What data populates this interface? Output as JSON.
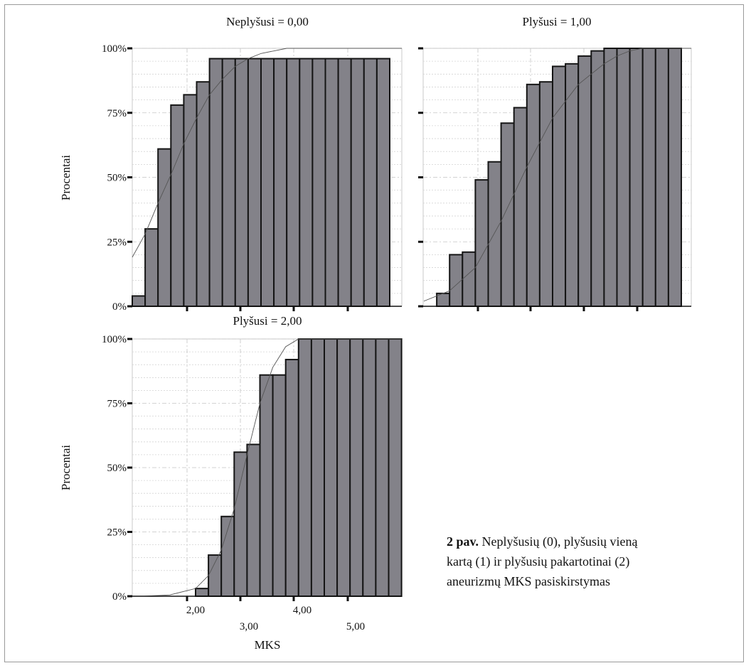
{
  "chart_data": [
    {
      "type": "bar",
      "panel_title": "Neplyšusi = 0,00",
      "ylabel": "Procentai",
      "xlabel": "",
      "ylim": [
        0,
        100
      ],
      "yticks": [
        "0%",
        "25%",
        "50%",
        "75%",
        "100%"
      ],
      "xticks": [],
      "grid": true,
      "values": [
        4,
        30,
        61,
        78,
        82,
        87,
        96,
        96,
        96,
        96,
        96,
        96,
        96,
        96,
        96,
        96,
        96,
        96,
        96,
        96,
        96,
        100
      ],
      "curve": [
        [
          0,
          19
        ],
        [
          1,
          28
        ],
        [
          2,
          40
        ],
        [
          3,
          51
        ],
        [
          4,
          63
        ],
        [
          5,
          73
        ],
        [
          6,
          82
        ],
        [
          7,
          88
        ],
        [
          8,
          93
        ],
        [
          9,
          96
        ],
        [
          10,
          98
        ],
        [
          11,
          99
        ],
        [
          12,
          100
        ],
        [
          22,
          100
        ]
      ]
    },
    {
      "type": "bar",
      "panel_title": "Plyšusi = 1,00",
      "ylabel": "",
      "xlabel": "",
      "ylim": [
        0,
        100
      ],
      "yticks": [],
      "xticks": [],
      "grid": true,
      "values": [
        0,
        5,
        20,
        21,
        49,
        56,
        71,
        77,
        86,
        87,
        93,
        94,
        97,
        99,
        100,
        100,
        100,
        100,
        100,
        100,
        100,
        100,
        100
      ],
      "curve": [
        [
          0,
          2
        ],
        [
          2,
          6
        ],
        [
          4,
          15
        ],
        [
          6,
          33
        ],
        [
          8,
          54
        ],
        [
          10,
          73
        ],
        [
          12,
          86
        ],
        [
          14,
          94
        ],
        [
          15,
          97
        ],
        [
          16,
          99
        ],
        [
          17,
          100
        ],
        [
          23,
          100
        ]
      ]
    },
    {
      "type": "bar",
      "panel_title": "Plyšusi = 2,00",
      "ylabel": "Procentai",
      "xlabel": "MKS",
      "ylim": [
        0,
        100
      ],
      "yticks": [
        "0%",
        "25%",
        "50%",
        "75%",
        "100%"
      ],
      "xticks": [
        "2,00",
        "3,00",
        "4,00",
        "5,00"
      ],
      "grid": true,
      "values": [
        3,
        16,
        31,
        56,
        59,
        86,
        86,
        92,
        100,
        100,
        100,
        100,
        100,
        100,
        100,
        100
      ],
      "curve": [
        [
          -4,
          0
        ],
        [
          -2,
          0.5
        ],
        [
          0,
          3
        ],
        [
          1,
          8
        ],
        [
          2,
          18
        ],
        [
          3,
          34
        ],
        [
          4,
          55
        ],
        [
          5,
          75
        ],
        [
          6,
          89
        ],
        [
          7,
          97
        ],
        [
          8,
          100
        ],
        [
          16,
          100
        ]
      ]
    }
  ],
  "caption": {
    "bold": "2 pav.",
    "text": "Neplyšusių (0), plyšusių vieną kartą (1) ir plyšusių pakartotinai (2) aneurizmų MKS pasiskirstymas"
  }
}
